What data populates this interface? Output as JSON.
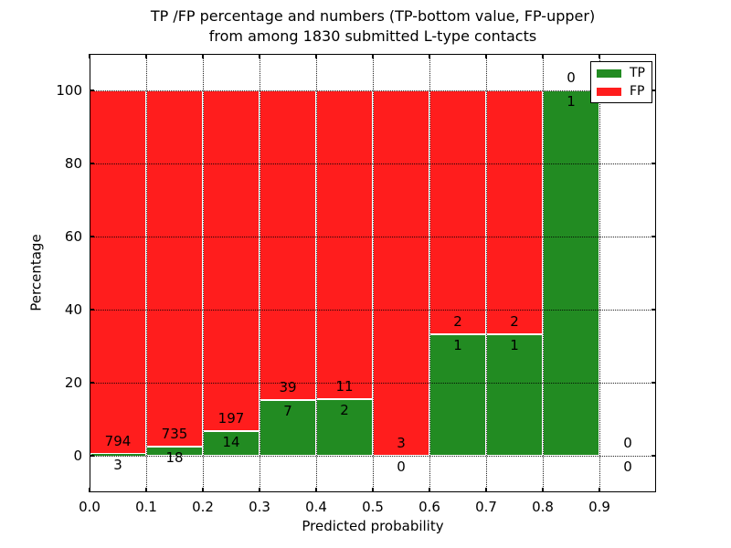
{
  "chart_data": {
    "type": "bar",
    "stacked": true,
    "title_line1": "TP /FP percentage and numbers (TP-bottom value, FP-upper)",
    "title_line2": "from among 1830 submitted L-type contacts",
    "total_submitted_contacts": 1830,
    "xlabel": "Predicted probability",
    "ylabel": "Percentage",
    "xlim": [
      0.0,
      1.0
    ],
    "ylim": [
      -10,
      110
    ],
    "grid": true,
    "grid_style": "dotted-black-above-bars",
    "xticks": [
      0.0,
      0.1,
      0.2,
      0.3,
      0.4,
      0.5,
      0.6,
      0.7,
      0.8,
      0.9
    ],
    "xtick_labels": [
      "0.0",
      "0.1",
      "0.2",
      "0.3",
      "0.4",
      "0.5",
      "0.6",
      "0.7",
      "0.8",
      "0.9"
    ],
    "yticks": [
      0,
      20,
      40,
      60,
      80,
      100
    ],
    "ytick_labels": [
      "0",
      "20",
      "40",
      "60",
      "80",
      "100"
    ],
    "bin_edges": [
      0.0,
      0.1,
      0.2,
      0.3,
      0.4,
      0.5,
      0.6,
      0.7,
      0.8,
      0.9,
      1.0
    ],
    "series": [
      {
        "name": "TP",
        "color": "#228B22",
        "counts": [
          3,
          18,
          14,
          7,
          2,
          0,
          1,
          1,
          1,
          0
        ]
      },
      {
        "name": "FP",
        "color": "#FF1D1D",
        "counts": [
          794,
          735,
          197,
          39,
          11,
          3,
          2,
          2,
          0,
          0
        ]
      }
    ],
    "bins": [
      {
        "x0": 0.0,
        "x1": 0.1,
        "tp": 3,
        "fp": 794,
        "tp_pct": 0.3764
      },
      {
        "x0": 0.1,
        "x1": 0.2,
        "tp": 18,
        "fp": 735,
        "tp_pct": 2.3904
      },
      {
        "x0": 0.2,
        "x1": 0.3,
        "tp": 14,
        "fp": 197,
        "tp_pct": 6.6351
      },
      {
        "x0": 0.3,
        "x1": 0.4,
        "tp": 7,
        "fp": 39,
        "tp_pct": 15.2174
      },
      {
        "x0": 0.4,
        "x1": 0.5,
        "tp": 2,
        "fp": 11,
        "tp_pct": 15.3846
      },
      {
        "x0": 0.5,
        "x1": 0.6,
        "tp": 0,
        "fp": 3,
        "tp_pct": 0
      },
      {
        "x0": 0.6,
        "x1": 0.7,
        "tp": 1,
        "fp": 2,
        "tp_pct": 33.3333
      },
      {
        "x0": 0.7,
        "x1": 0.8,
        "tp": 1,
        "fp": 2,
        "tp_pct": 33.3333
      },
      {
        "x0": 0.8,
        "x1": 0.9,
        "tp": 1,
        "fp": 0,
        "tp_pct": 100
      },
      {
        "x0": 0.9,
        "x1": 1.0,
        "tp": 0,
        "fp": 0,
        "tp_pct": 0,
        "empty": true
      }
    ]
  },
  "legend": {
    "position": "upper right",
    "items": [
      {
        "label": "TP",
        "color": "#228B22"
      },
      {
        "label": "FP",
        "color": "#FF1D1D"
      }
    ]
  },
  "colors": {
    "tp_green": "#228B22",
    "fp_red": "#FF1D1D",
    "background": "#ffffff",
    "text": "#000000"
  }
}
